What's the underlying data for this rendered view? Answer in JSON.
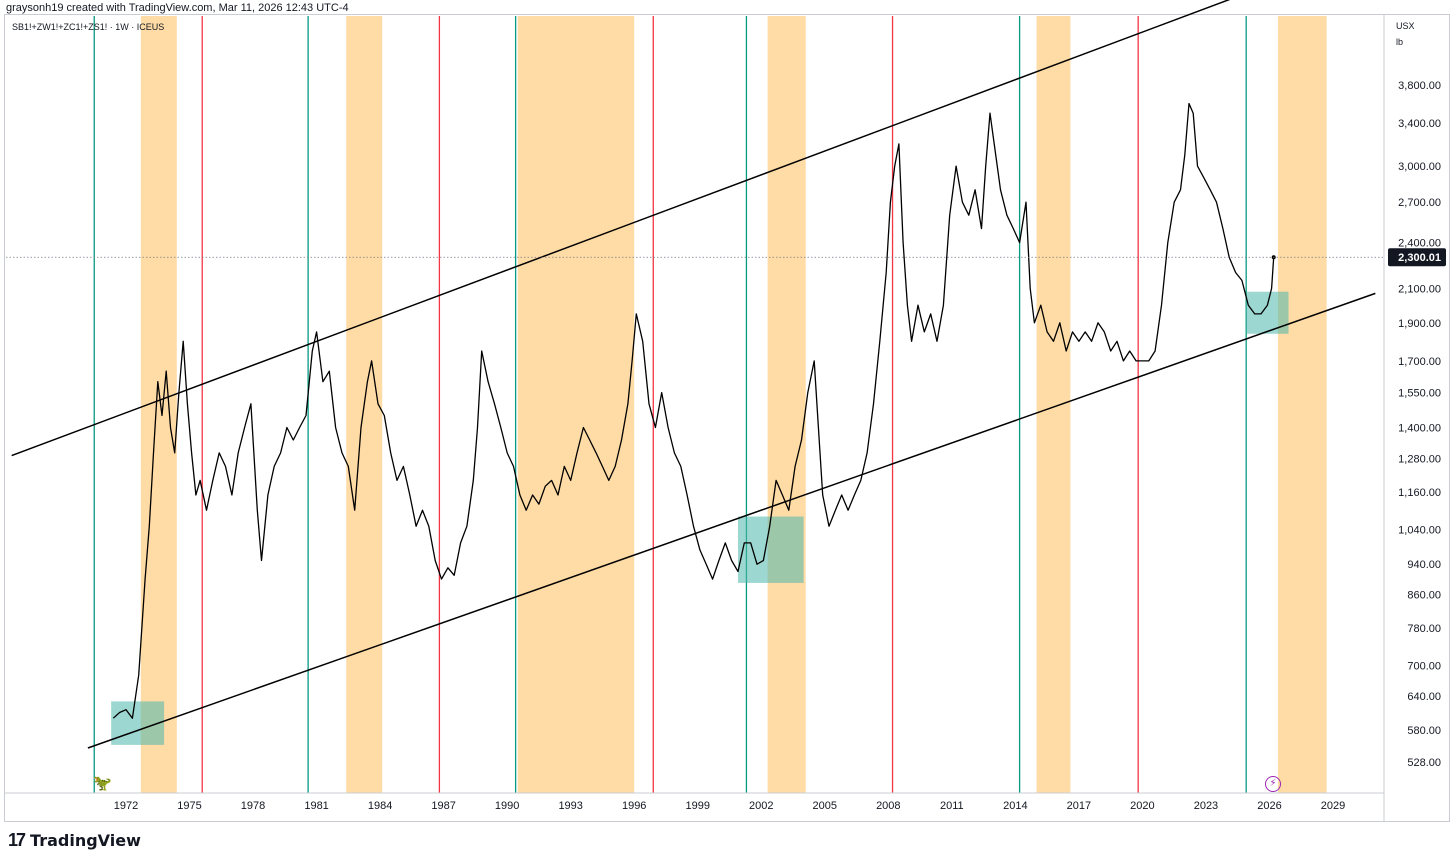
{
  "header": {
    "credit": "graysonh19 created with TradingView.com, Mar 11, 2026 12:43 UTC-4",
    "symbol": "SB1!+ZW1!+ZC1!+ZS1! · 1W · ICEUS"
  },
  "price_axis": {
    "unit_top": "USX",
    "unit_bottom": "lb"
  },
  "footer": {
    "logo": "17",
    "brand": "TradingView"
  },
  "icons": {
    "bolt": "lightning-icon",
    "dino": "replay-dino-icon"
  },
  "colors": {
    "green_line": "#089981",
    "red_line": "#f23645",
    "orange_band": "#ffcc80",
    "teal_box": "#4db6ac",
    "price": "#000000"
  },
  "chart_data": {
    "type": "line",
    "scale": "log",
    "current_price": "2,300.01",
    "y_ticks": [
      528,
      580,
      640,
      700,
      780,
      860,
      940,
      1040,
      1160,
      1280,
      1400,
      1550,
      1700,
      1900,
      2100,
      2400,
      2700,
      3000,
      3400,
      3800
    ],
    "y_tick_labels": [
      "528.00",
      "580.00",
      "640.00",
      "700.00",
      "780.00",
      "860.00",
      "940.00",
      "1,040.00",
      "1,160.00",
      "1,280.00",
      "1,400.00",
      "1,550.00",
      "1,700.00",
      "1,900.00",
      "2,100.00",
      "2,400.00",
      "2,700.00",
      "3,000.00",
      "3,400.00",
      "3,800.00"
    ],
    "x_ticks": [
      1972,
      1975,
      1978,
      1981,
      1984,
      1987,
      1990,
      1993,
      1996,
      1999,
      2002,
      2005,
      2008,
      2011,
      2014,
      2017,
      2020,
      2023,
      2026,
      2029
    ],
    "x_tick_labels": [
      "1972",
      "1975",
      "1978",
      "1981",
      "1984",
      "1987",
      "1990",
      "1993",
      "1996",
      "1999",
      "2002",
      "2005",
      "2008",
      "2011",
      "2014",
      "2017",
      "2020",
      "2023",
      "2026",
      "2029"
    ],
    "green_verticals": [
      1970.5,
      1980.6,
      1990.4,
      2001.3,
      2014.2,
      2024.9
    ],
    "red_verticals": [
      1975.6,
      1986.8,
      1996.9,
      2008.2,
      2019.8
    ],
    "orange_bands": [
      [
        1972.7,
        1974.4
      ],
      [
        1982.4,
        1984.1
      ],
      [
        1990.5,
        1996.0
      ],
      [
        2002.3,
        2004.1
      ],
      [
        2015.0,
        2016.6
      ],
      [
        2026.4,
        2028.7
      ]
    ],
    "teal_boxes": [
      {
        "x": [
          1971.3,
          1973.8
        ],
        "y": [
          555,
          630
        ]
      },
      {
        "x": [
          2000.9,
          2004.0
        ],
        "y": [
          890,
          1080
        ]
      },
      {
        "x": [
          2024.9,
          2026.9
        ],
        "y": [
          1840,
          2080
        ]
      }
    ],
    "channel_upper": [
      [
        1966.6,
        1290
      ],
      [
        2025.2,
        5000
      ]
    ],
    "channel_lower": [
      [
        1970.2,
        550
      ],
      [
        2031.0,
        2070
      ]
    ],
    "series": [
      {
        "points": [
          [
            1971.4,
            600
          ],
          [
            1971.7,
            610
          ],
          [
            1972.0,
            615
          ],
          [
            1972.3,
            600
          ],
          [
            1972.6,
            680
          ],
          [
            1972.9,
            900
          ],
          [
            1973.1,
            1050
          ],
          [
            1973.3,
            1300
          ],
          [
            1973.5,
            1600
          ],
          [
            1973.7,
            1450
          ],
          [
            1973.9,
            1650
          ],
          [
            1974.1,
            1400
          ],
          [
            1974.3,
            1300
          ],
          [
            1974.5,
            1550
          ],
          [
            1974.7,
            1800
          ],
          [
            1974.9,
            1500
          ],
          [
            1975.1,
            1300
          ],
          [
            1975.3,
            1150
          ],
          [
            1975.5,
            1200
          ],
          [
            1975.8,
            1100
          ],
          [
            1976.1,
            1200
          ],
          [
            1976.4,
            1300
          ],
          [
            1976.7,
            1250
          ],
          [
            1977.0,
            1150
          ],
          [
            1977.3,
            1300
          ],
          [
            1977.6,
            1400
          ],
          [
            1977.9,
            1500
          ],
          [
            1978.2,
            1100
          ],
          [
            1978.4,
            950
          ],
          [
            1978.7,
            1150
          ],
          [
            1979.0,
            1250
          ],
          [
            1979.3,
            1300
          ],
          [
            1979.6,
            1400
          ],
          [
            1979.9,
            1350
          ],
          [
            1980.2,
            1400
          ],
          [
            1980.5,
            1450
          ],
          [
            1980.8,
            1750
          ],
          [
            1981.0,
            1850
          ],
          [
            1981.3,
            1600
          ],
          [
            1981.6,
            1650
          ],
          [
            1981.9,
            1400
          ],
          [
            1982.2,
            1300
          ],
          [
            1982.5,
            1250
          ],
          [
            1982.8,
            1100
          ],
          [
            1983.1,
            1400
          ],
          [
            1983.4,
            1600
          ],
          [
            1983.6,
            1700
          ],
          [
            1983.9,
            1500
          ],
          [
            1984.2,
            1450
          ],
          [
            1984.5,
            1300
          ],
          [
            1984.8,
            1200
          ],
          [
            1985.1,
            1250
          ],
          [
            1985.4,
            1150
          ],
          [
            1985.7,
            1050
          ],
          [
            1986.0,
            1100
          ],
          [
            1986.3,
            1050
          ],
          [
            1986.6,
            950
          ],
          [
            1986.9,
            900
          ],
          [
            1987.2,
            930
          ],
          [
            1987.5,
            910
          ],
          [
            1987.8,
            1000
          ],
          [
            1988.1,
            1050
          ],
          [
            1988.4,
            1200
          ],
          [
            1988.6,
            1400
          ],
          [
            1988.8,
            1750
          ],
          [
            1989.1,
            1600
          ],
          [
            1989.4,
            1500
          ],
          [
            1989.7,
            1400
          ],
          [
            1990.0,
            1300
          ],
          [
            1990.3,
            1250
          ],
          [
            1990.6,
            1150
          ],
          [
            1990.9,
            1100
          ],
          [
            1991.2,
            1150
          ],
          [
            1991.5,
            1120
          ],
          [
            1991.8,
            1180
          ],
          [
            1992.1,
            1200
          ],
          [
            1992.4,
            1150
          ],
          [
            1992.7,
            1250
          ],
          [
            1993.0,
            1200
          ],
          [
            1993.3,
            1300
          ],
          [
            1993.6,
            1400
          ],
          [
            1993.9,
            1350
          ],
          [
            1994.2,
            1300
          ],
          [
            1994.5,
            1250
          ],
          [
            1994.8,
            1200
          ],
          [
            1995.1,
            1250
          ],
          [
            1995.4,
            1350
          ],
          [
            1995.7,
            1500
          ],
          [
            1995.9,
            1700
          ],
          [
            1996.1,
            1950
          ],
          [
            1996.4,
            1800
          ],
          [
            1996.7,
            1500
          ],
          [
            1997.0,
            1400
          ],
          [
            1997.3,
            1550
          ],
          [
            1997.6,
            1400
          ],
          [
            1997.9,
            1300
          ],
          [
            1998.2,
            1250
          ],
          [
            1998.5,
            1150
          ],
          [
            1998.8,
            1050
          ],
          [
            1999.1,
            980
          ],
          [
            1999.4,
            940
          ],
          [
            1999.7,
            900
          ],
          [
            2000.0,
            950
          ],
          [
            2000.3,
            1000
          ],
          [
            2000.6,
            950
          ],
          [
            2000.9,
            920
          ],
          [
            2001.2,
            1000
          ],
          [
            2001.5,
            1000
          ],
          [
            2001.8,
            940
          ],
          [
            2002.1,
            950
          ],
          [
            2002.4,
            1050
          ],
          [
            2002.7,
            1200
          ],
          [
            2003.0,
            1150
          ],
          [
            2003.3,
            1100
          ],
          [
            2003.6,
            1250
          ],
          [
            2003.9,
            1350
          ],
          [
            2004.2,
            1550
          ],
          [
            2004.5,
            1700
          ],
          [
            2004.7,
            1400
          ],
          [
            2004.9,
            1150
          ],
          [
            2005.2,
            1050
          ],
          [
            2005.5,
            1100
          ],
          [
            2005.8,
            1150
          ],
          [
            2006.1,
            1100
          ],
          [
            2006.4,
            1150
          ],
          [
            2006.7,
            1200
          ],
          [
            2007.0,
            1300
          ],
          [
            2007.3,
            1500
          ],
          [
            2007.6,
            1800
          ],
          [
            2007.9,
            2200
          ],
          [
            2008.1,
            2700
          ],
          [
            2008.3,
            3000
          ],
          [
            2008.5,
            3200
          ],
          [
            2008.7,
            2400
          ],
          [
            2008.9,
            2000
          ],
          [
            2009.1,
            1800
          ],
          [
            2009.4,
            2000
          ],
          [
            2009.7,
            1850
          ],
          [
            2010.0,
            1950
          ],
          [
            2010.3,
            1800
          ],
          [
            2010.6,
            2000
          ],
          [
            2010.9,
            2600
          ],
          [
            2011.2,
            3000
          ],
          [
            2011.5,
            2700
          ],
          [
            2011.8,
            2600
          ],
          [
            2012.1,
            2800
          ],
          [
            2012.4,
            2500
          ],
          [
            2012.6,
            3000
          ],
          [
            2012.8,
            3500
          ],
          [
            2013.0,
            3200
          ],
          [
            2013.3,
            2800
          ],
          [
            2013.6,
            2600
          ],
          [
            2013.9,
            2500
          ],
          [
            2014.2,
            2400
          ],
          [
            2014.5,
            2700
          ],
          [
            2014.7,
            2100
          ],
          [
            2014.9,
            1900
          ],
          [
            2015.2,
            2000
          ],
          [
            2015.5,
            1850
          ],
          [
            2015.8,
            1800
          ],
          [
            2016.1,
            1900
          ],
          [
            2016.4,
            1750
          ],
          [
            2016.7,
            1850
          ],
          [
            2017.0,
            1800
          ],
          [
            2017.3,
            1850
          ],
          [
            2017.6,
            1800
          ],
          [
            2017.9,
            1900
          ],
          [
            2018.2,
            1850
          ],
          [
            2018.5,
            1750
          ],
          [
            2018.8,
            1800
          ],
          [
            2019.1,
            1700
          ],
          [
            2019.4,
            1750
          ],
          [
            2019.7,
            1700
          ],
          [
            2020.0,
            1700
          ],
          [
            2020.3,
            1700
          ],
          [
            2020.6,
            1750
          ],
          [
            2020.9,
            2000
          ],
          [
            2021.2,
            2400
          ],
          [
            2021.5,
            2700
          ],
          [
            2021.8,
            2800
          ],
          [
            2022.0,
            3100
          ],
          [
            2022.2,
            3600
          ],
          [
            2022.4,
            3500
          ],
          [
            2022.6,
            3000
          ],
          [
            2022.9,
            2900
          ],
          [
            2023.2,
            2800
          ],
          [
            2023.5,
            2700
          ],
          [
            2023.8,
            2500
          ],
          [
            2024.1,
            2300
          ],
          [
            2024.4,
            2200
          ],
          [
            2024.7,
            2150
          ],
          [
            2025.0,
            2000
          ],
          [
            2025.3,
            1950
          ],
          [
            2025.6,
            1950
          ],
          [
            2025.9,
            2000
          ],
          [
            2026.1,
            2100
          ],
          [
            2026.2,
            2300
          ]
        ]
      }
    ]
  }
}
